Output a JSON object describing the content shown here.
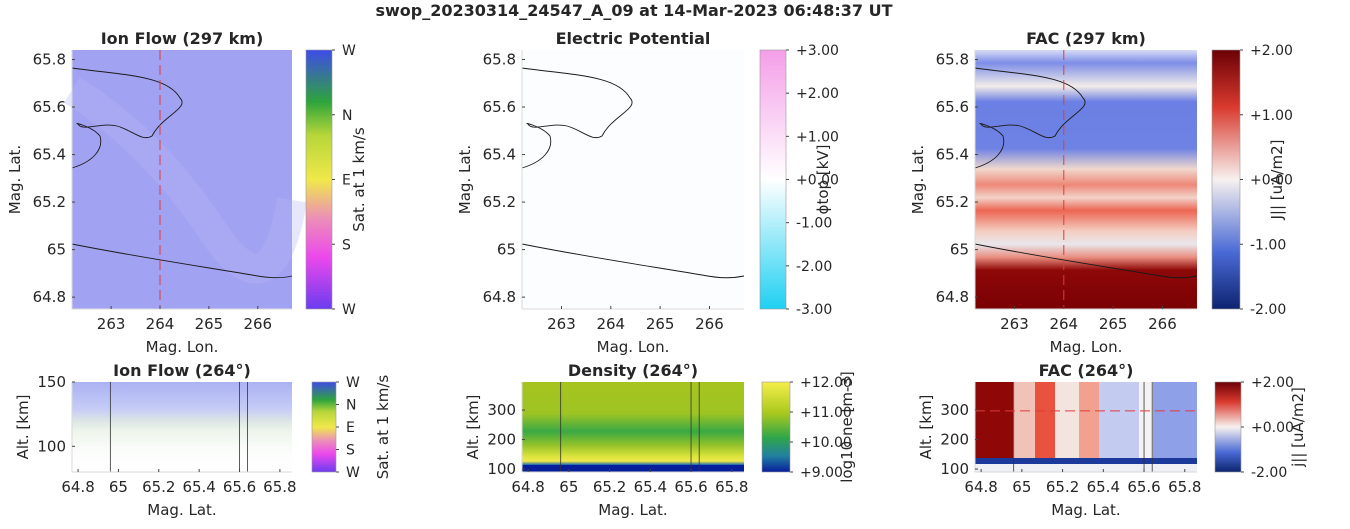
{
  "figure": {
    "suptitle": "swop_20230314_24547_A_09 at 14-Mar-2023 06:48:37 UT"
  },
  "chart_data": [
    {
      "id": "ion-flow-map",
      "type": "heatmap",
      "title": "Ion Flow (297 km)",
      "xlabel": "Mag. Lon.",
      "ylabel": "Mag. Lat.",
      "xlim": [
        262.2,
        266.7
      ],
      "ylim": [
        64.75,
        65.84
      ],
      "xticks": [
        "263",
        "264",
        "265",
        "266"
      ],
      "yticks": [
        "64.8",
        "65",
        "65.2",
        "65.4",
        "65.6",
        "65.8"
      ],
      "colorbar_label": "Sat. at 1 km/s",
      "colorbar_ticks": [
        "W",
        "N",
        "E",
        "S",
        "W"
      ],
      "cut_longitude": 264
    },
    {
      "id": "electric-potential-map",
      "type": "heatmap",
      "title": "Electric Potential",
      "xlabel": "Mag. Lon.",
      "ylabel": "Mag. Lat.",
      "xlim": [
        262.2,
        266.7
      ],
      "ylim": [
        64.75,
        65.84
      ],
      "xticks": [
        "263",
        "264",
        "265",
        "266"
      ],
      "yticks": [
        "64.8",
        "65",
        "65.2",
        "65.4",
        "65.6",
        "65.8"
      ],
      "colorbar_label": "ϕtop [kV]",
      "colorbar_ticks": [
        "+3.00",
        "+2.00",
        "+1.00",
        "+0.00",
        "-1.00",
        "-2.00",
        "-3.00"
      ]
    },
    {
      "id": "fac-map",
      "type": "heatmap",
      "title": "FAC (297 km)",
      "xlabel": "Mag. Lon.",
      "ylabel": "Mag. Lat.",
      "xlim": [
        262.2,
        266.7
      ],
      "ylim": [
        64.75,
        65.84
      ],
      "xticks": [
        "263",
        "264",
        "265",
        "266"
      ],
      "yticks": [
        "64.8",
        "65",
        "65.2",
        "65.4",
        "65.6",
        "65.8"
      ],
      "colorbar_label": "J|| [uA/m2]",
      "colorbar_ticks": [
        "+2.00",
        "+1.00",
        "+0.00",
        "-1.00",
        "-2.00"
      ],
      "cut_longitude": 264
    },
    {
      "id": "ion-flow-cut",
      "type": "heatmap",
      "title": "Ion Flow (264°)",
      "xlabel": "Mag. Lat.",
      "ylabel": "Alt. [km]",
      "xlim": [
        64.77,
        65.86
      ],
      "ylim": [
        80,
        150
      ],
      "xticks": [
        "64.8",
        "65",
        "65.2",
        "65.4",
        "65.6",
        "65.8"
      ],
      "yticks": [
        "100",
        "150"
      ],
      "colorbar_label": "Sat. at 1 km/s",
      "colorbar_ticks": [
        "W",
        "N",
        "E",
        "S",
        "W"
      ],
      "boundary_latitudes": [
        64.96,
        65.6,
        65.64
      ]
    },
    {
      "id": "density-cut",
      "type": "heatmap",
      "title": "Density (264°)",
      "xlabel": "Mag. Lat.",
      "ylabel": "Alt. [km]",
      "xlim": [
        64.77,
        65.86
      ],
      "ylim": [
        90,
        395
      ],
      "xticks": [
        "64.8",
        "65",
        "65.2",
        "65.4",
        "65.6",
        "65.8"
      ],
      "yticks": [
        "100",
        "200",
        "300"
      ],
      "colorbar_label": "log10 ne [m-3]",
      "colorbar_ticks": [
        "+12.00",
        "+11.00",
        "+10.00",
        "+9.00"
      ],
      "boundary_latitudes": [
        64.96,
        65.6,
        65.64
      ]
    },
    {
      "id": "fac-cut",
      "type": "heatmap",
      "title": "FAC (264°)",
      "xlabel": "Mag. Lat.",
      "ylabel": "Alt. [km]",
      "xlim": [
        64.77,
        65.86
      ],
      "ylim": [
        90,
        395
      ],
      "xticks": [
        "64.8",
        "65",
        "65.2",
        "65.4",
        "65.6",
        "65.8"
      ],
      "yticks": [
        "100",
        "200",
        "300"
      ],
      "colorbar_label": "j|| [uA/m2]",
      "colorbar_ticks": [
        "+2.00",
        "+0.00",
        "-2.00"
      ],
      "boundary_latitudes": [
        64.96,
        65.6,
        65.64
      ],
      "cut_altitude_km": 297
    }
  ]
}
